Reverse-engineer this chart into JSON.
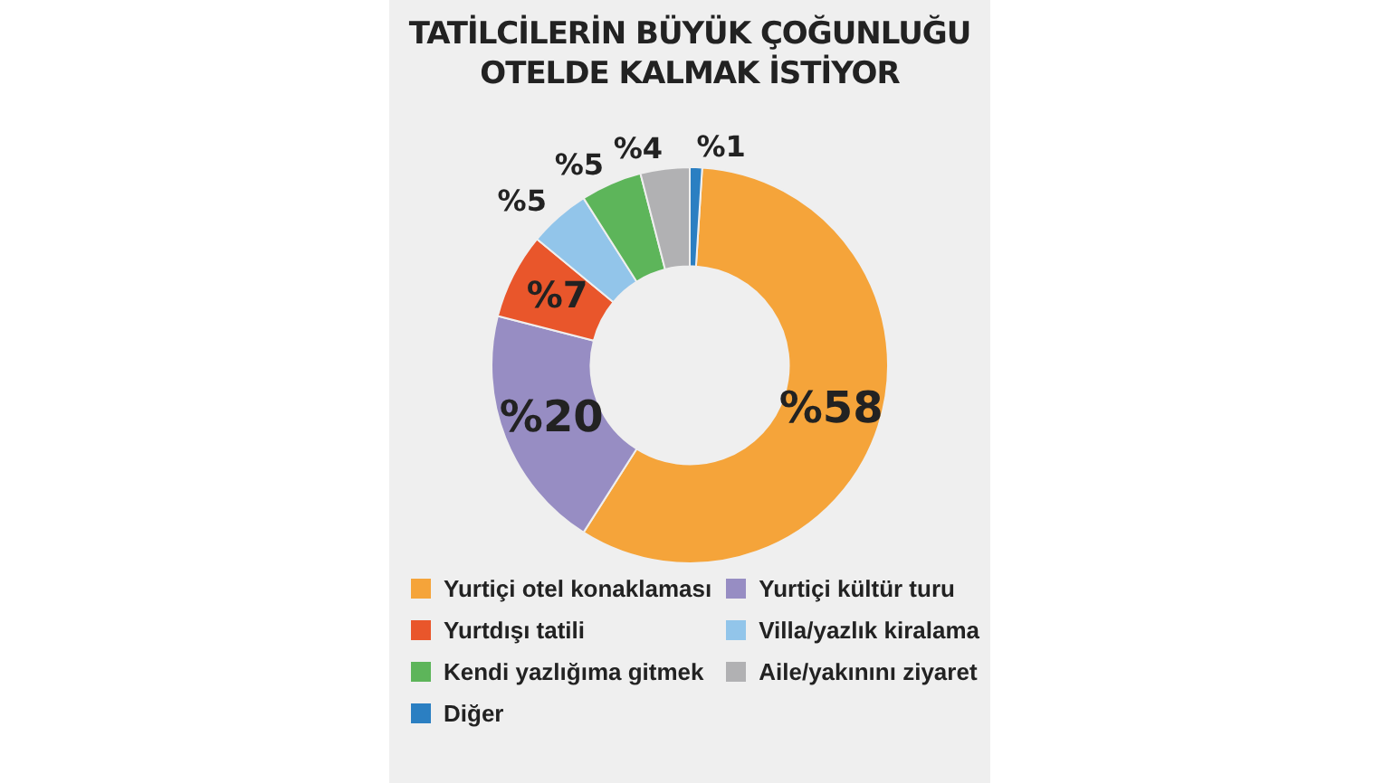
{
  "chart_data": {
    "type": "donut",
    "title": "TATİLCİLERİN BÜYÜK ÇOĞUNLUĞU\nOTELDE KALMAK İSTİYOR",
    "categories": [
      "Yurtiçi otel konaklaması",
      "Yurtiçi kültür turu",
      "Yurtdışı tatili",
      "Villa/yazlık kiralama",
      "Kendi yazlığıma gitmek",
      "Aile/yakınını ziyaret",
      "Diğer"
    ],
    "values": [
      58,
      20,
      7,
      5,
      5,
      4,
      1
    ],
    "colors": [
      "#f5a43a",
      "#978dc3",
      "#e9562b",
      "#92c5ea",
      "#5db55a",
      "#b1b1b3",
      "#2b7fc2"
    ],
    "value_labels": [
      "%58",
      "%20",
      "%7",
      "%5",
      "%5",
      "%4",
      "%1"
    ],
    "legend": "bottom"
  }
}
